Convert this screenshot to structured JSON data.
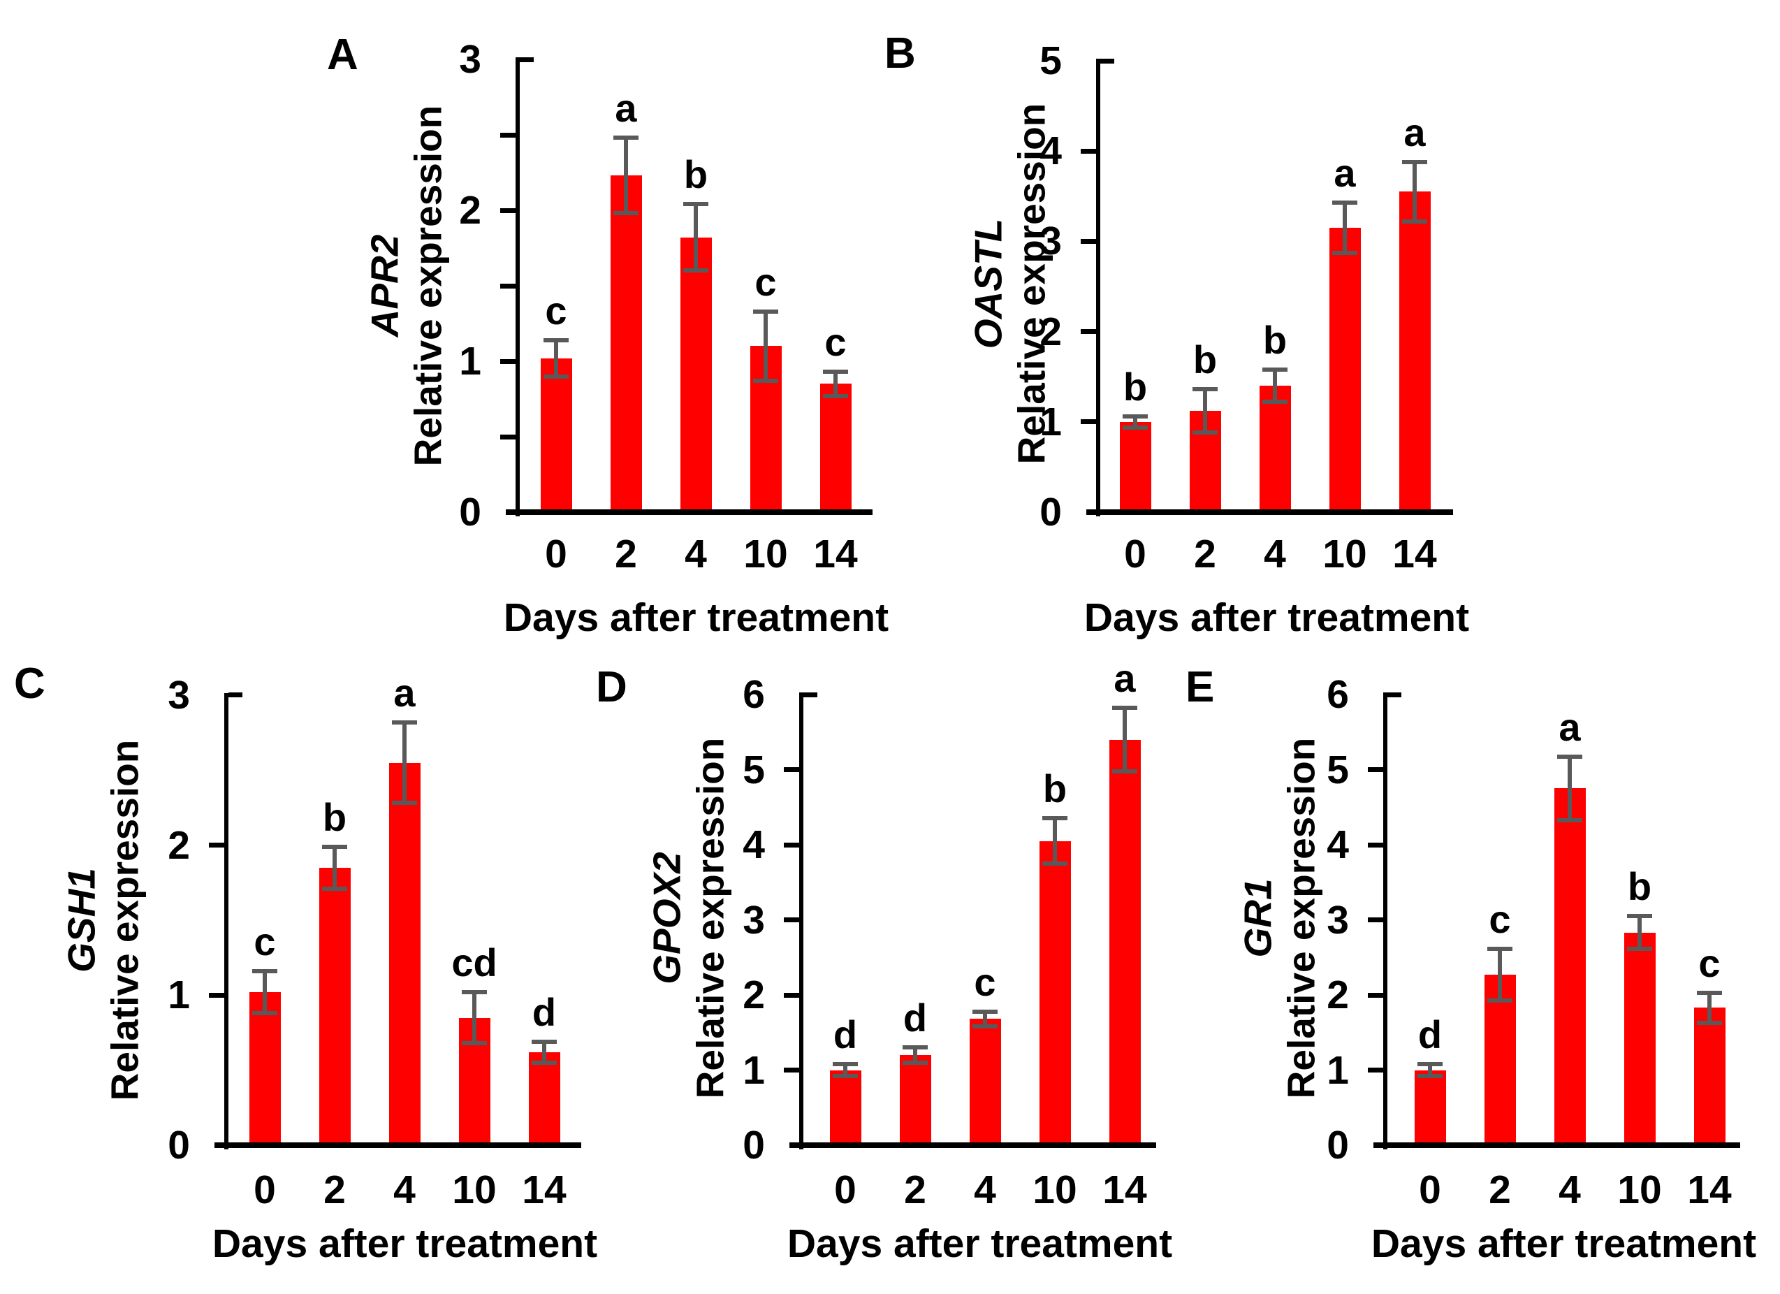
{
  "figure": {
    "background": "#ffffff",
    "colors": {
      "bar": "#ff0000",
      "error_bar": "#595959",
      "axis": "#000000",
      "text": "#000000"
    }
  },
  "chart_data": [
    {
      "type": "bar",
      "panel_label": "A",
      "gene": "APR2",
      "ylabel": "Relative expression",
      "xlabel": "Days after treatment",
      "categories": [
        "0",
        "2",
        "4",
        "10",
        "14"
      ],
      "values": [
        1.02,
        2.23,
        1.82,
        1.1,
        0.85
      ],
      "errors": [
        0.12,
        0.25,
        0.22,
        0.23,
        0.08
      ],
      "sig_letters": [
        "c",
        "a",
        "b",
        "c",
        "c"
      ],
      "ylim": [
        0,
        3
      ],
      "yticks": [
        0,
        1,
        2,
        3
      ],
      "minor_tick_step": 0.5,
      "grid": false,
      "legend": null
    },
    {
      "type": "bar",
      "panel_label": "B",
      "gene": "OASTL",
      "ylabel": "Relative expression",
      "xlabel": "Days after treatment",
      "categories": [
        "0",
        "2",
        "4",
        "10",
        "14"
      ],
      "values": [
        1.0,
        1.12,
        1.4,
        3.15,
        3.55
      ],
      "errors": [
        0.06,
        0.24,
        0.18,
        0.28,
        0.33
      ],
      "sig_letters": [
        "b",
        "b",
        "b",
        "a",
        "a"
      ],
      "ylim": [
        0,
        5
      ],
      "yticks": [
        0,
        1,
        2,
        3,
        4,
        5
      ],
      "minor_tick_step": null,
      "grid": false,
      "legend": null
    },
    {
      "type": "bar",
      "panel_label": "C",
      "gene": "GSH1",
      "ylabel": "Relative expression",
      "xlabel": "Days after treatment",
      "categories": [
        "0",
        "2",
        "4",
        "10",
        "14"
      ],
      "values": [
        1.02,
        1.85,
        2.55,
        0.85,
        0.62
      ],
      "errors": [
        0.14,
        0.14,
        0.27,
        0.17,
        0.07
      ],
      "sig_letters": [
        "c",
        "b",
        "a",
        "cd",
        "d"
      ],
      "ylim": [
        0,
        3
      ],
      "yticks": [
        0,
        1,
        2,
        3
      ],
      "minor_tick_step": null,
      "grid": false,
      "legend": null
    },
    {
      "type": "bar",
      "panel_label": "D",
      "gene": "GPOX2",
      "ylabel": "Relative expression",
      "xlabel": "Days after treatment",
      "categories": [
        "0",
        "2",
        "4",
        "10",
        "14"
      ],
      "values": [
        1.0,
        1.2,
        1.68,
        4.05,
        5.4
      ],
      "errors": [
        0.08,
        0.1,
        0.1,
        0.3,
        0.42
      ],
      "sig_letters": [
        "d",
        "d",
        "c",
        "b",
        "a"
      ],
      "ylim": [
        0,
        6
      ],
      "yticks": [
        0,
        1,
        2,
        3,
        4,
        5,
        6
      ],
      "minor_tick_step": null,
      "grid": false,
      "legend": null
    },
    {
      "type": "bar",
      "panel_label": "E",
      "gene": "GR1",
      "ylabel": "Relative expression",
      "xlabel": "Days after treatment",
      "categories": [
        "0",
        "2",
        "4",
        "10",
        "14"
      ],
      "values": [
        1.0,
        2.27,
        4.75,
        2.83,
        1.83
      ],
      "errors": [
        0.08,
        0.34,
        0.42,
        0.22,
        0.2
      ],
      "sig_letters": [
        "d",
        "c",
        "a",
        "b",
        "c"
      ],
      "ylim": [
        0,
        6
      ],
      "yticks": [
        0,
        1,
        2,
        3,
        4,
        5,
        6
      ],
      "minor_tick_step": null,
      "grid": false,
      "legend": null
    }
  ]
}
